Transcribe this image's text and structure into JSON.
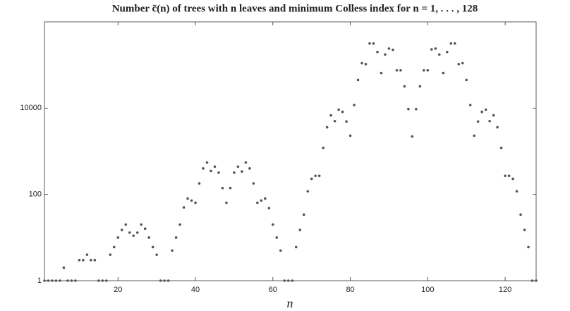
{
  "chart_data": {
    "type": "scatter",
    "title": "Number c̃(n) of trees with n leaves and minimum Colless index for n = 1, . . . , 128",
    "x_label": "n",
    "color": "#555555",
    "log_y": true,
    "x": [
      1,
      2,
      3,
      4,
      5,
      6,
      7,
      8,
      9,
      10,
      11,
      12,
      13,
      14,
      15,
      16,
      17,
      18,
      19,
      20,
      21,
      22,
      23,
      24,
      25,
      26,
      27,
      28,
      29,
      30,
      31,
      32,
      33,
      34,
      35,
      36,
      37,
      38,
      39,
      40,
      41,
      42,
      43,
      44,
      45,
      46,
      47,
      48,
      49,
      50,
      51,
      52,
      53,
      54,
      55,
      56,
      57,
      58,
      59,
      60,
      61,
      62,
      63,
      64,
      65,
      66,
      67,
      68,
      69,
      70,
      71,
      72,
      73,
      74,
      75,
      76,
      77,
      78,
      79,
      80,
      81,
      82,
      83,
      84,
      85,
      86,
      87,
      88,
      89,
      90,
      91,
      92,
      93,
      94,
      95,
      96,
      97,
      98,
      99,
      100,
      101,
      102,
      103,
      104,
      105,
      106,
      107,
      108,
      109,
      110,
      111,
      112,
      113,
      114,
      115,
      116,
      117,
      118,
      119,
      120,
      121,
      122,
      123,
      124,
      125,
      126,
      127,
      128
    ],
    "values": [
      1,
      1,
      1,
      1,
      1,
      2,
      1,
      1,
      1,
      3,
      3,
      4,
      3,
      3,
      1,
      1,
      1,
      4,
      6,
      10,
      15,
      20,
      13,
      11,
      13,
      20,
      16,
      10,
      6,
      4,
      1,
      1,
      1,
      5,
      10,
      20,
      50,
      80,
      72,
      64,
      180,
      400,
      550,
      350,
      440,
      320,
      140,
      64,
      140,
      320,
      440,
      340,
      550,
      400,
      180,
      64,
      72,
      80,
      48,
      20,
      10,
      5,
      1,
      1,
      1,
      6,
      15,
      34,
      118,
      230,
      270,
      270,
      1200,
      3600,
      6800,
      5000,
      9200,
      8200,
      4900,
      2300,
      11800,
      45000,
      110000,
      105000,
      315000,
      315000,
      200000,
      65000,
      175000,
      240000,
      225000,
      75000,
      75000,
      32000,
      9500,
      2200,
      9500,
      32000,
      75000,
      75000,
      230000,
      240000,
      175000,
      65000,
      200000,
      315000,
      315000,
      105000,
      110000,
      45000,
      11800,
      2300,
      4900,
      8200,
      9200,
      5000,
      6800,
      3600,
      1200,
      270,
      270,
      230,
      118,
      34,
      15,
      6,
      1,
      1
    ],
    "xlim": [
      1,
      128
    ],
    "ylim": [
      1,
      1000000
    ],
    "xticks": [
      20,
      40,
      60,
      80,
      100,
      120
    ],
    "yticks": [
      1,
      100,
      10000
    ]
  }
}
